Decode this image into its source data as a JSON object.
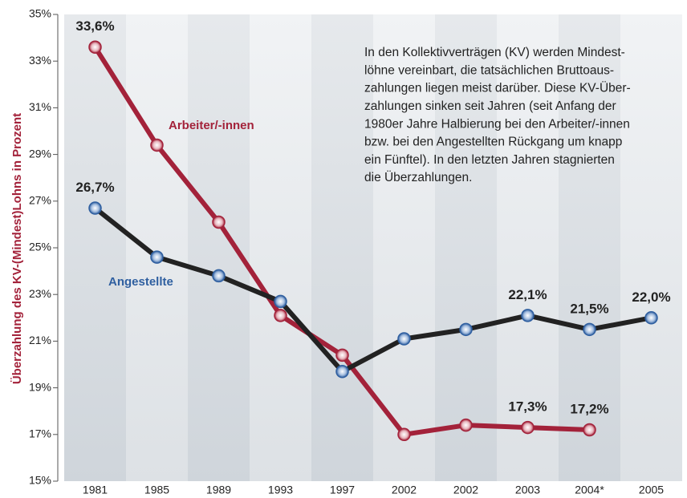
{
  "chart_data": {
    "type": "line",
    "y_label": "Überzahlung des KV-(Mindest)Lohns in Prozent",
    "annotation": [
      "In den Kollektivverträgen (KV) werden Mindest-",
      "löhne vereinbart, die tatsächlichen Bruttoaus-",
      "zahlungen liegen meist darüber. Diese KV-Über-",
      "zahlungen sinken seit Jahren (seit Anfang der",
      "1980er Jahre Halbierung bei den Arbeiter/-innen",
      "bzw. bei den Angestellten Rückgang um knapp",
      "ein Fünftel). In den letzten Jahren stagnierten",
      "die Überzahlungen."
    ],
    "categories": [
      "1981",
      "1985",
      "1989",
      "1993",
      "1997",
      "2002",
      "2002",
      "2003",
      "2004*",
      "2005"
    ],
    "series": [
      {
        "name": "Arbeiter/-innen",
        "color": "#a3223a",
        "values": [
          33.6,
          29.4,
          26.1,
          22.1,
          20.4,
          17.0,
          17.4,
          17.3,
          17.2,
          null
        ],
        "value_labels": [
          "33,6%",
          null,
          null,
          null,
          null,
          null,
          null,
          "17,3%",
          "17,2%",
          null
        ]
      },
      {
        "name": "Angestellte",
        "color": "#222222",
        "values": [
          26.7,
          24.6,
          23.8,
          22.7,
          19.7,
          21.1,
          21.5,
          22.1,
          21.5,
          22.0
        ],
        "value_labels": [
          "26,7%",
          null,
          null,
          null,
          null,
          null,
          null,
          "22,1%",
          "21,5%",
          "22,0%"
        ]
      }
    ],
    "ylim": [
      15,
      35
    ],
    "yticks": [
      {
        "value": 15,
        "label": "15%"
      },
      {
        "value": 17,
        "label": "17%"
      },
      {
        "value": 19,
        "label": "19%"
      },
      {
        "value": 21,
        "label": "21%"
      },
      {
        "value": 23,
        "label": "23%"
      },
      {
        "value": 25,
        "label": "25%"
      },
      {
        "value": 27,
        "label": "27%"
      },
      {
        "value": 29,
        "label": "29%"
      },
      {
        "value": 31,
        "label": "31%"
      },
      {
        "value": 33,
        "label": "33%"
      },
      {
        "value": 35,
        "label": "35%"
      }
    ]
  }
}
